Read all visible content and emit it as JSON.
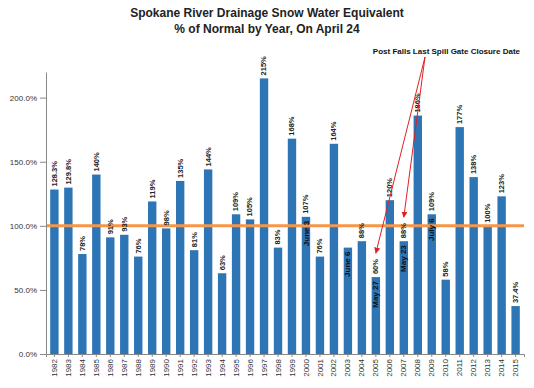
{
  "chart_data": {
    "type": "bar",
    "title": "Spokane River Drainage Snow Water Equivalent",
    "subtitle": "% of Normal by Year, On April 24",
    "categories": [
      "1982",
      "1983",
      "1984",
      "1985",
      "1986",
      "1987",
      "1988",
      "1989",
      "1990",
      "1991",
      "1992",
      "1993",
      "1994",
      "1995",
      "1996",
      "1997",
      "1998",
      "1999",
      "2000",
      "2001",
      "2002",
      "2003",
      "2004",
      "2005",
      "2006",
      "2007",
      "2008",
      "2009",
      "2010",
      "2011",
      "2012",
      "2013",
      "2014",
      "2015"
    ],
    "values": [
      128.3,
      129.8,
      78,
      140,
      91,
      93,
      76,
      119,
      98,
      135,
      81,
      144,
      63,
      109,
      105,
      215,
      83,
      168,
      107,
      76,
      164,
      83,
      88,
      60,
      120,
      88,
      186,
      109,
      58,
      177,
      138,
      100,
      123,
      37.4
    ],
    "value_labels": [
      "128.3%",
      "129.8%",
      "78%",
      "140%",
      "91%",
      "93%",
      "76%",
      "119%",
      "98%",
      "135%",
      "81%",
      "144%",
      "63%",
      "109%",
      "105%",
      "215%",
      "83%",
      "168%",
      "107%",
      "76%",
      "164%",
      null,
      "88%",
      "60%",
      "120%",
      "88%",
      "186%",
      "109%",
      "58%",
      "177%",
      "138%",
      "100%",
      "123%",
      "37.4%"
    ],
    "data_labels": true,
    "color": "#2e75b6",
    "ylim": [
      0,
      220
    ],
    "yticks": [
      {
        "value": 0,
        "label": "0.0%"
      },
      {
        "value": 50,
        "label": "50.0%"
      },
      {
        "value": 100,
        "label": "100.0%"
      },
      {
        "value": 150,
        "label": "150.0%"
      },
      {
        "value": 200,
        "label": "200.0%"
      }
    ],
    "grid": false,
    "normal_line": {
      "value": 100,
      "color": "#f79646"
    },
    "annotations": [
      {
        "x": "2000",
        "text": "June 3"
      },
      {
        "x": "2003",
        "text": "June 6"
      },
      {
        "x": "2005",
        "text": "May 27"
      },
      {
        "x": "2007",
        "text": "May 23"
      },
      {
        "x": "2009",
        "text": "July 6"
      }
    ],
    "callout": {
      "text": "Post Falls Last Spill Gate Closure Date",
      "targets": [
        "2005",
        "2007"
      ],
      "color": "#e02020"
    }
  }
}
